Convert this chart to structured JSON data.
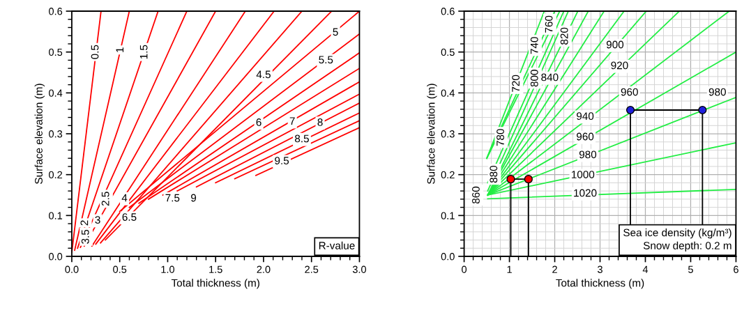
{
  "chart_data": [
    {
      "type": "line",
      "xlabel": "Total thickness (m)",
      "ylabel": "Surface elevation (m)",
      "xlim": [
        0.0,
        3.0
      ],
      "ylim": [
        0.0,
        0.6
      ],
      "grid": false,
      "marker": "none",
      "line_style": "solid",
      "xticks": [
        {
          "value": 0,
          "label": "0.0"
        },
        {
          "value": 0.1,
          "label": null
        },
        {
          "value": 0.2,
          "label": null
        },
        {
          "value": 0.3,
          "label": null
        },
        {
          "value": 0.4,
          "label": null
        },
        0.5,
        {
          "value": 0.6,
          "label": null
        },
        {
          "value": 0.7,
          "label": null
        },
        {
          "value": 0.8,
          "label": null
        },
        {
          "value": 0.9,
          "label": null
        },
        {
          "value": 1,
          "label": "1.0"
        },
        {
          "value": 1.1,
          "label": null
        },
        {
          "value": 1.2,
          "label": null
        },
        {
          "value": 1.3,
          "label": null
        },
        {
          "value": 1.4,
          "label": null
        },
        1.5,
        {
          "value": 1.6,
          "label": null
        },
        {
          "value": 1.7,
          "label": null
        },
        {
          "value": 1.8,
          "label": null
        },
        {
          "value": 1.9,
          "label": null
        },
        {
          "value": 2,
          "label": "2.0"
        },
        {
          "value": 2.1,
          "label": null
        },
        {
          "value": 2.2,
          "label": null
        },
        {
          "value": 2.3,
          "label": null
        },
        {
          "value": 2.4,
          "label": null
        },
        2.5,
        {
          "value": 2.6,
          "label": null
        },
        {
          "value": 2.7,
          "label": null
        },
        {
          "value": 2.8,
          "label": null
        },
        {
          "value": 2.9,
          "label": null
        },
        {
          "value": 3,
          "label": "3.0"
        }
      ],
      "yticks": [
        {
          "value": 0,
          "label": "0.0"
        },
        {
          "value": 0.02,
          "label": null
        },
        {
          "value": 0.04,
          "label": null
        },
        {
          "value": 0.06,
          "label": null
        },
        {
          "value": 0.08,
          "label": null
        },
        0.1,
        {
          "value": 0.12,
          "label": null
        },
        {
          "value": 0.14,
          "label": null
        },
        {
          "value": 0.16,
          "label": null
        },
        {
          "value": 0.18,
          "label": null
        },
        0.2,
        {
          "value": 0.22,
          "label": null
        },
        {
          "value": 0.24,
          "label": null
        },
        {
          "value": 0.26,
          "label": null
        },
        {
          "value": 0.28,
          "label": null
        },
        0.3,
        {
          "value": 0.32,
          "label": null
        },
        {
          "value": 0.34,
          "label": null
        },
        {
          "value": 0.36,
          "label": null
        },
        {
          "value": 0.38,
          "label": null
        },
        0.4,
        {
          "value": 0.42,
          "label": null
        },
        {
          "value": 0.44,
          "label": null
        },
        {
          "value": 0.46,
          "label": null
        },
        {
          "value": 0.48,
          "label": null
        },
        0.5,
        {
          "value": 0.52,
          "label": null
        },
        {
          "value": 0.54,
          "label": null
        },
        {
          "value": 0.56,
          "label": null
        },
        {
          "value": 0.58,
          "label": null
        },
        0.6
      ],
      "series": [
        {
          "color": "#ff0000",
          "x": [
            0.0,
            0.305
          ],
          "values": [
            0.01,
            0.6
          ]
        },
        {
          "color": "#ff0000",
          "x": [
            0.03,
            0.6
          ],
          "values": [
            0.015,
            0.6
          ]
        },
        {
          "color": "#ff0000",
          "x": [
            0.06,
            0.9
          ],
          "values": [
            0.02,
            0.6
          ]
        },
        {
          "color": "#ff0000",
          "x": [
            0.09,
            1.2
          ],
          "values": [
            0.022,
            0.6
          ]
        },
        {
          "color": "#ff0000",
          "x": [
            0.13,
            1.5
          ],
          "values": [
            0.025,
            0.6
          ]
        },
        {
          "color": "#ff0000",
          "x": [
            0.21,
            1.81
          ],
          "values": [
            0.025,
            0.6
          ]
        },
        {
          "color": "#ff0000",
          "x": [
            0.25,
            2.11
          ],
          "values": [
            0.03,
            0.6
          ]
        },
        {
          "color": "#ff0000",
          "x": [
            0.3,
            2.4
          ],
          "values": [
            0.033,
            0.6
          ]
        },
        {
          "color": "#ff0000",
          "x": [
            0.35,
            2.71
          ],
          "values": [
            0.04,
            0.6
          ]
        },
        {
          "color": "#ff0000",
          "x": [
            0.5,
            3.0
          ],
          "values": [
            0.11,
            0.6
          ]
        },
        {
          "color": "#ff0000",
          "x": [
            0.6,
            3.0
          ],
          "values": [
            0.12,
            0.544
          ]
        },
        {
          "color": "#ff0000",
          "x": [
            0.7,
            3.0
          ],
          "values": [
            0.13,
            0.498
          ]
        },
        {
          "color": "#ff0000",
          "x": [
            0.8,
            3.0
          ],
          "values": [
            0.14,
            0.46
          ]
        },
        {
          "color": "#ff0000",
          "x": [
            0.95,
            3.0
          ],
          "values": [
            0.15,
            0.427
          ]
        },
        {
          "color": "#ff0000",
          "x": [
            1.1,
            3.0
          ],
          "values": [
            0.16,
            0.397
          ]
        },
        {
          "color": "#ff0000",
          "x": [
            1.3,
            3.0
          ],
          "values": [
            0.17,
            0.375
          ]
        },
        {
          "color": "#ff0000",
          "x": [
            1.5,
            3.0
          ],
          "values": [
            0.18,
            0.351
          ]
        },
        {
          "color": "#ff0000",
          "x": [
            1.7,
            3.0
          ],
          "values": [
            0.19,
            0.332
          ]
        },
        {
          "color": "#ff0000",
          "x": [
            1.92,
            3.0
          ],
          "values": [
            0.198,
            0.315
          ]
        }
      ],
      "annotations": [
        {
          "text": "0.5",
          "x": 0.25,
          "y": 0.5
        },
        {
          "text": "1",
          "x": 0.51,
          "y": 0.505
        },
        {
          "text": "1.5",
          "x": 0.76,
          "y": 0.5
        },
        {
          "text": "4.5",
          "x": 2.0,
          "y": 0.443
        },
        {
          "text": "5",
          "x": 2.75,
          "y": 0.547
        },
        {
          "text": "5.5",
          "x": 2.65,
          "y": 0.479
        },
        {
          "text": "6",
          "x": 1.95,
          "y": 0.326
        },
        {
          "text": "7",
          "x": 2.3,
          "y": 0.329
        },
        {
          "text": "8",
          "x": 2.59,
          "y": 0.326
        },
        {
          "text": "8.5",
          "x": 2.4,
          "y": 0.286
        },
        {
          "text": "9.5",
          "x": 2.19,
          "y": 0.232
        },
        {
          "text": "2.5",
          "x": 0.36,
          "y": 0.141
        },
        {
          "text": "4",
          "x": 0.55,
          "y": 0.141
        },
        {
          "text": "7.5",
          "x": 1.05,
          "y": 0.141
        },
        {
          "text": "9",
          "x": 1.27,
          "y": 0.141
        },
        {
          "text": "2",
          "x": 0.14,
          "y": 0.082
        },
        {
          "text": "3",
          "x": 0.27,
          "y": 0.087
        },
        {
          "text": "6.5",
          "x": 0.6,
          "y": 0.094
        },
        {
          "text": "3.5",
          "x": 0.15,
          "y": 0.048
        },
        "R-value"
      ]
    },
    {
      "type": "line",
      "xlabel": "Total thickness (m)",
      "ylabel": "Surface elevation (m)",
      "xlim": [
        0,
        6
      ],
      "ylim": [
        0.0,
        0.6
      ],
      "grid": true,
      "marker": "none",
      "line_style": "solid",
      "xticks": [
        0,
        {
          "value": 0.2,
          "label": null
        },
        {
          "value": 0.4,
          "label": null
        },
        {
          "value": 0.6,
          "label": null
        },
        {
          "value": 0.8,
          "label": null
        },
        1,
        {
          "value": 1.2,
          "label": null
        },
        {
          "value": 1.4,
          "label": null
        },
        {
          "value": 1.6,
          "label": null
        },
        {
          "value": 1.8,
          "label": null
        },
        2,
        {
          "value": 2.2,
          "label": null
        },
        {
          "value": 2.4,
          "label": null
        },
        {
          "value": 2.6,
          "label": null
        },
        {
          "value": 2.8,
          "label": null
        },
        3,
        {
          "value": 3.2,
          "label": null
        },
        {
          "value": 3.4,
          "label": null
        },
        {
          "value": 3.6,
          "label": null
        },
        {
          "value": 3.8,
          "label": null
        },
        4,
        {
          "value": 4.2,
          "label": null
        },
        {
          "value": 4.4,
          "label": null
        },
        {
          "value": 4.6,
          "label": null
        },
        {
          "value": 4.8,
          "label": null
        },
        5,
        {
          "value": 5.2,
          "label": null
        },
        {
          "value": 5.4,
          "label": null
        },
        {
          "value": 5.6,
          "label": null
        },
        {
          "value": 5.8,
          "label": null
        },
        6
      ],
      "yticks": [
        {
          "value": 0,
          "label": "0.0"
        },
        {
          "value": 0.02,
          "label": null
        },
        {
          "value": 0.04,
          "label": null
        },
        {
          "value": 0.06,
          "label": null
        },
        {
          "value": 0.08,
          "label": null
        },
        0.1,
        {
          "value": 0.12,
          "label": null
        },
        {
          "value": 0.14,
          "label": null
        },
        {
          "value": 0.16,
          "label": null
        },
        {
          "value": 0.18,
          "label": null
        },
        0.2,
        {
          "value": 0.22,
          "label": null
        },
        {
          "value": 0.24,
          "label": null
        },
        {
          "value": 0.26,
          "label": null
        },
        {
          "value": 0.28,
          "label": null
        },
        0.3,
        {
          "value": 0.32,
          "label": null
        },
        {
          "value": 0.34,
          "label": null
        },
        {
          "value": 0.36,
          "label": null
        },
        {
          "value": 0.38,
          "label": null
        },
        0.4,
        {
          "value": 0.42,
          "label": null
        },
        {
          "value": 0.44,
          "label": null
        },
        {
          "value": 0.46,
          "label": null
        },
        {
          "value": 0.48,
          "label": null
        },
        0.5,
        {
          "value": 0.52,
          "label": null
        },
        {
          "value": 0.54,
          "label": null
        },
        {
          "value": 0.56,
          "label": null
        },
        {
          "value": 0.58,
          "label": null
        },
        0.6
      ],
      "series": [
        {
          "color": "#22ee44",
          "x": [
            0.5,
            1.77
          ],
          "values": [
            0.24,
            0.6
          ]
        },
        {
          "color": "#22ee44",
          "x": [
            0.5,
            2.0
          ],
          "values": [
            0.24,
            0.6
          ]
        },
        {
          "color": "#22ee44",
          "x": [
            0.5,
            2.11
          ],
          "values": [
            0.24,
            0.6
          ]
        },
        {
          "color": "#22ee44",
          "x": [
            0.52,
            2.2
          ],
          "values": [
            0.18,
            0.6
          ]
        },
        {
          "color": "#22ee44",
          "x": [
            0.52,
            2.3
          ],
          "values": [
            0.16,
            0.6
          ]
        },
        {
          "color": "#22ee44",
          "x": [
            0.52,
            2.51
          ],
          "values": [
            0.15,
            0.6
          ]
        },
        {
          "color": "#22ee44",
          "x": [
            0.52,
            2.74
          ],
          "values": [
            0.15,
            0.6
          ]
        },
        {
          "color": "#22ee44",
          "x": [
            0.52,
            3.09
          ],
          "values": [
            0.15,
            0.6
          ]
        },
        {
          "color": "#22ee44",
          "x": [
            0.52,
            3.53
          ],
          "values": [
            0.15,
            0.6
          ]
        },
        {
          "color": "#22ee44",
          "x": [
            0.52,
            4.02
          ],
          "values": [
            0.15,
            0.6
          ]
        },
        {
          "color": "#22ee44",
          "x": [
            0.52,
            4.75
          ],
          "values": [
            0.15,
            0.6
          ]
        },
        {
          "color": "#22ee44",
          "x": [
            0.52,
            5.85
          ],
          "values": [
            0.15,
            0.6
          ]
        },
        {
          "color": "#22ee44",
          "x": [
            0.52,
            6.0
          ],
          "values": [
            0.15,
            0.5
          ]
        },
        {
          "color": "#22ee44",
          "x": [
            0.52,
            6.0
          ],
          "values": [
            0.15,
            0.389
          ]
        },
        {
          "color": "#22ee44",
          "x": [
            0.52,
            6.0
          ],
          "values": [
            0.15,
            0.278
          ]
        },
        {
          "color": "#22ee44",
          "x": [
            0.52,
            6.0
          ],
          "values": [
            0.141,
            0.164
          ]
        },
        {
          "color": "#000000",
          "x": [
            1.03,
            1.03,
            1.42,
            1.42
          ],
          "values": [
            0.0,
            0.189,
            0.189,
            0.0
          ]
        },
        {
          "color": "#000000",
          "x": [
            3.67,
            3.67,
            5.26,
            5.26
          ],
          "values": [
            0.0,
            0.358,
            0.358,
            0.0
          ]
        },
        {
          "type": "scatter",
          "color": "#ff0000",
          "marker": "circle",
          "x": [
            1.03,
            1.42
          ],
          "values": [
            0.189,
            0.189
          ]
        },
        {
          "type": "scatter",
          "color": "#1f1fdd",
          "marker": "circle",
          "x": [
            3.67,
            5.26
          ],
          "values": [
            0.358,
            0.358
          ]
        }
      ],
      "annotations": [
        {
          "text": "720",
          "x": 1.16,
          "y": 0.423
        },
        {
          "text": "740",
          "x": 1.57,
          "y": 0.516
        },
        {
          "text": "760",
          "x": 1.89,
          "y": 0.568
        },
        {
          "text": "800",
          "x": 1.57,
          "y": 0.436
        },
        {
          "text": "820",
          "x": 2.23,
          "y": 0.539
        },
        {
          "text": "840",
          "x": 1.89,
          "y": 0.436
        },
        {
          "text": "780",
          "x": 0.82,
          "y": 0.291
        },
        {
          "text": "880",
          "x": 0.67,
          "y": 0.201
        },
        {
          "text": "860",
          "x": 0.28,
          "y": 0.15
        },
        {
          "text": "900",
          "x": 3.33,
          "y": 0.516
        },
        {
          "text": "920",
          "x": 3.43,
          "y": 0.465
        },
        {
          "text": "940",
          "x": 2.67,
          "y": 0.341
        },
        {
          "text": "960",
          "x": 2.67,
          "y": 0.291
        },
        {
          "text": "980",
          "x": 2.73,
          "y": 0.247
        },
        {
          "text": "1000",
          "x": 2.62,
          "y": 0.198
        },
        {
          "text": "1020",
          "x": 2.67,
          "y": 0.153
        },
        {
          "text": "960",
          "x": 3.65,
          "y": 0.4
        },
        {
          "text": "980",
          "x": 5.59,
          "y": 0.4
        },
        "Sea ice density (kg/m³)\nSnow depth: 0.2 m"
      ]
    }
  ]
}
